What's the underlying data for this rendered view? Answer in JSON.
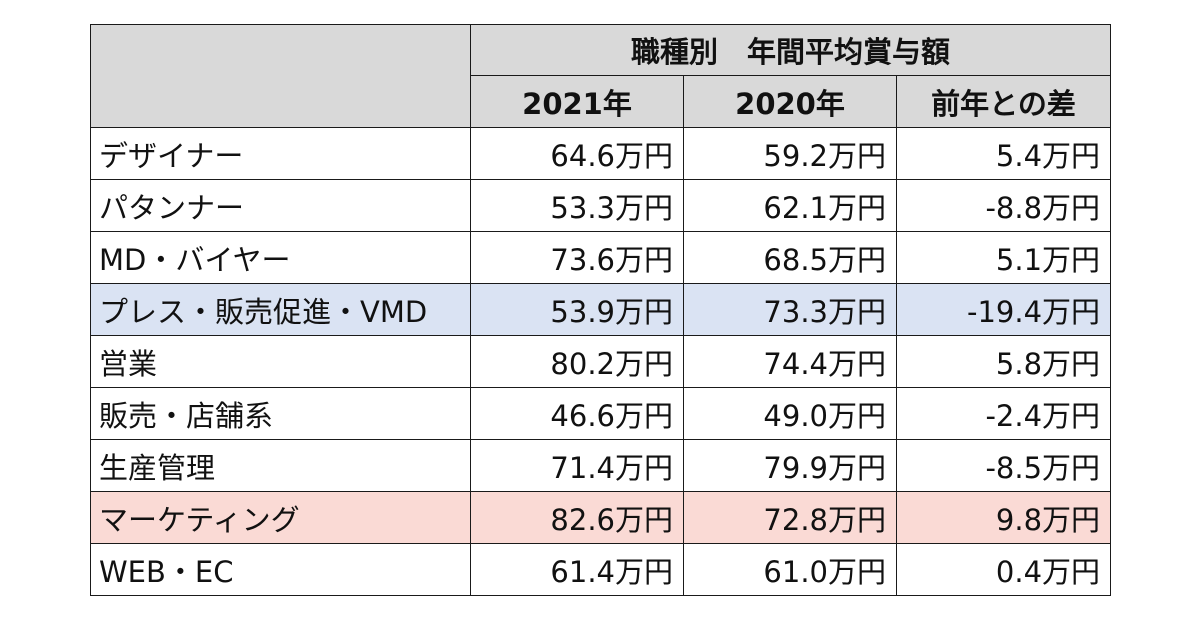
{
  "table": {
    "title": "職種別　年間平均賞与額",
    "columns": [
      "2021年",
      "2020年",
      "前年との差"
    ],
    "rows": [
      {
        "name": "デザイナー",
        "y2021": "64.6万円",
        "y2020": "59.2万円",
        "diff": "5.4万円",
        "highlight": "none"
      },
      {
        "name": "パタンナー",
        "y2021": "53.3万円",
        "y2020": "62.1万円",
        "diff": "-8.8万円",
        "highlight": "none"
      },
      {
        "name": "MD・バイヤー",
        "y2021": "73.6万円",
        "y2020": "68.5万円",
        "diff": "5.1万円",
        "highlight": "none"
      },
      {
        "name": "プレス・販売促進・VMD",
        "y2021": "53.9万円",
        "y2020": "73.3万円",
        "diff": "-19.4万円",
        "highlight": "blue"
      },
      {
        "name": "営業",
        "y2021": "80.2万円",
        "y2020": "74.4万円",
        "diff": "5.8万円",
        "highlight": "none"
      },
      {
        "name": "販売・店舗系",
        "y2021": "46.6万円",
        "y2020": "49.0万円",
        "diff": "-2.4万円",
        "highlight": "none"
      },
      {
        "name": "生産管理",
        "y2021": "71.4万円",
        "y2020": "79.9万円",
        "diff": "-8.5万円",
        "highlight": "none"
      },
      {
        "name": "マーケティング",
        "y2021": "82.6万円",
        "y2020": "72.8万円",
        "diff": "9.8万円",
        "highlight": "pink"
      },
      {
        "name": "WEB・EC",
        "y2021": "61.4万円",
        "y2020": "61.0万円",
        "diff": "0.4万円",
        "highlight": "none"
      }
    ]
  },
  "colors": {
    "header_bg": "#d9d9d9",
    "highlight_blue": "#dae3f3",
    "highlight_pink": "#fadad5",
    "border": "#1a1a1a"
  }
}
